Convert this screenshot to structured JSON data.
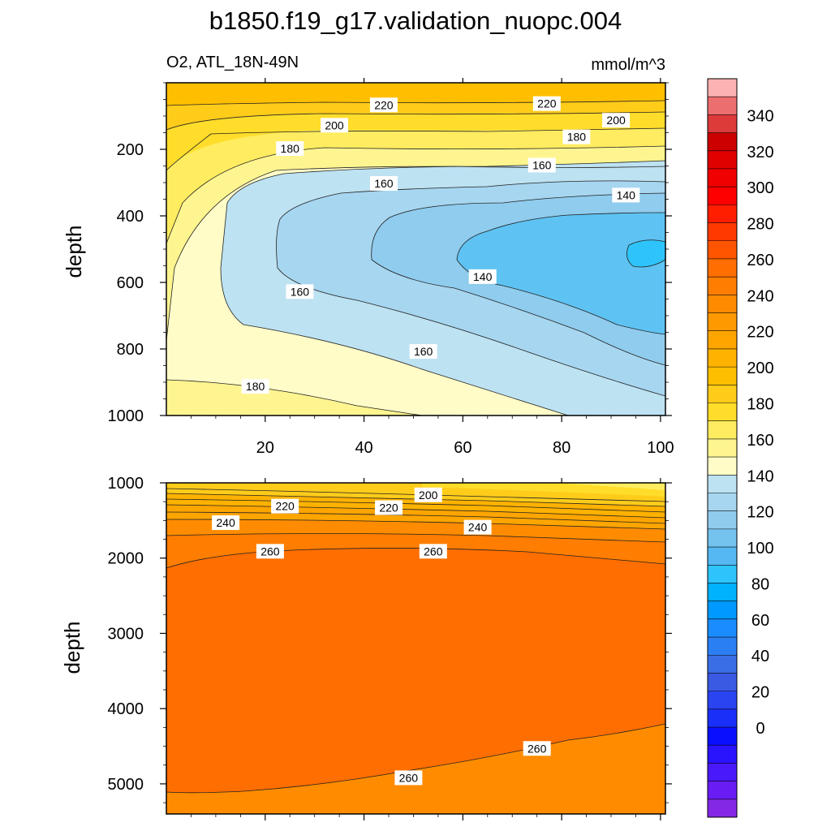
{
  "figure": {
    "title": "b1850.f19_g17.validation_nuopc.004",
    "left_label": "O2, ATL_18N-49N",
    "right_label": "mmol/m^3"
  },
  "chart_data": [
    {
      "type": "contour",
      "panel": "upper",
      "title": "b1850.f19_g17.validation_nuopc.004",
      "subtitle_left": "O2, ATL_18N-49N",
      "subtitle_right": "mmol/m^3",
      "xlabel": "",
      "ylabel": "depth",
      "xlim": [
        0,
        101
      ],
      "ylim": [
        1000,
        0
      ],
      "x_ticks": [
        20,
        40,
        60,
        80,
        100
      ],
      "y_ticks": [
        200,
        400,
        600,
        800,
        1000
      ],
      "contour_interval": 10,
      "contour_labels": [
        {
          "text": "220",
          "x": 44,
          "depth": 69
        },
        {
          "text": "220",
          "x": 77,
          "depth": 65
        },
        {
          "text": "200",
          "x": 34,
          "depth": 130
        },
        {
          "text": "200",
          "x": 91,
          "depth": 115
        },
        {
          "text": "180",
          "x": 83,
          "depth": 165
        },
        {
          "text": "180",
          "x": 25,
          "depth": 200
        },
        {
          "text": "160",
          "x": 76,
          "depth": 250
        },
        {
          "text": "160",
          "x": 44,
          "depth": 305
        },
        {
          "text": "140",
          "x": 93,
          "depth": 340
        },
        {
          "text": "140",
          "x": 64,
          "depth": 585
        },
        {
          "text": "160",
          "x": 27,
          "depth": 630
        },
        {
          "text": "160",
          "x": 52,
          "depth": 810
        },
        {
          "text": "180",
          "x": 18,
          "depth": 915
        }
      ]
    },
    {
      "type": "contour",
      "panel": "lower",
      "xlabel": "",
      "ylabel": "depth",
      "xlim": [
        0,
        101
      ],
      "ylim": [
        5400,
        1000
      ],
      "x_ticks": [
        20,
        40,
        60,
        80,
        100
      ],
      "y_ticks": [
        1000,
        2000,
        3000,
        4000,
        5000
      ],
      "contour_interval": 10,
      "contour_labels": [
        {
          "text": "200",
          "x": 53,
          "depth": 1170
        },
        {
          "text": "220",
          "x": 24,
          "depth": 1320
        },
        {
          "text": "220",
          "x": 45,
          "depth": 1340
        },
        {
          "text": "240",
          "x": 12,
          "depth": 1540
        },
        {
          "text": "240",
          "x": 63,
          "depth": 1600
        },
        {
          "text": "260",
          "x": 21,
          "depth": 1920
        },
        {
          "text": "260",
          "x": 54,
          "depth": 1920
        },
        {
          "text": "260",
          "x": 75,
          "depth": 4540
        },
        {
          "text": "260",
          "x": 49,
          "depth": 4930
        }
      ]
    }
  ],
  "colorbar": {
    "labels": [
      "340",
      "320",
      "300",
      "280",
      "260",
      "240",
      "220",
      "200",
      "180",
      "160",
      "140",
      "120",
      "100",
      "80",
      "60",
      "40",
      "20",
      "0"
    ],
    "colors": [
      "#fcb2b2",
      "#ed6e6e",
      "#dd3a3a",
      "#cc0000",
      "#e00000",
      "#f00000",
      "#ff0000",
      "#ff1e00",
      "#ff3a00",
      "#ff5500",
      "#ff6e00",
      "#ff7d00",
      "#ff8c00",
      "#ff9900",
      "#ffa500",
      "#ffb200",
      "#ffbf00",
      "#ffcc1a",
      "#ffdd2a",
      "#ffec60",
      "#fff590",
      "#fffcc8",
      "#bde2f2",
      "#a7d6f0",
      "#8fccee",
      "#74c2ee",
      "#55b8f2",
      "#2ec4fb",
      "#00b2fe",
      "#0099ff",
      "#1a8cff",
      "#2a7ff2",
      "#3a6ee5",
      "#3a5ae4",
      "#2a44f2",
      "#1a2ff7",
      "#0a10fe",
      "#2a14fe",
      "#4a19fb",
      "#6a1cf4",
      "#8428e6"
    ]
  },
  "colors": {
    "c240": "#ff8c00",
    "c250": "#ff7d00",
    "c260": "#ff6e00",
    "c230": "#ffa500",
    "c220": "#ffb200",
    "c210": "#ffbf00",
    "c200": "#ffcc1a",
    "c190": "#ffdd2a",
    "c180": "#fff590",
    "c170": "#fffcc8",
    "c160": "#bde2f2",
    "c150": "#a7d6f0",
    "c140": "#8fccee",
    "c130": "#5ec3f3"
  }
}
